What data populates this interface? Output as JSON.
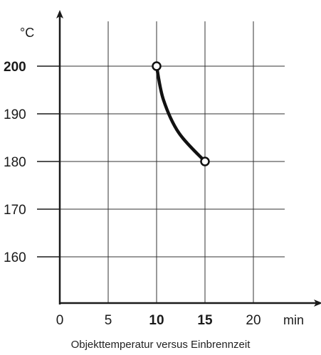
{
  "chart_data": {
    "type": "line",
    "caption": "Objekttemperatur versus Einbrennzeit",
    "xunit": "min",
    "yunit": "°C",
    "xlim": [
      0,
      22
    ],
    "ylim": [
      151,
      205
    ],
    "x_ticks": [
      {
        "value": 0,
        "label": "0",
        "bold": false
      },
      {
        "value": 5,
        "label": "5",
        "bold": false
      },
      {
        "value": 10,
        "label": "10",
        "bold": true
      },
      {
        "value": 15,
        "label": "15",
        "bold": true
      },
      {
        "value": 20,
        "label": "20",
        "bold": false
      }
    ],
    "y_ticks": [
      {
        "value": 160,
        "label": "160",
        "bold": false
      },
      {
        "value": 170,
        "label": "170",
        "bold": false
      },
      {
        "value": 180,
        "label": "180",
        "bold": false
      },
      {
        "value": 190,
        "label": "190",
        "bold": false
      },
      {
        "value": 200,
        "label": "200",
        "bold": true
      }
    ],
    "grid": true,
    "series": [
      {
        "points": [
          {
            "x": 10,
            "y": 200
          },
          {
            "x": 10.7,
            "y": 193
          },
          {
            "x": 12.3,
            "y": 186
          },
          {
            "x": 15,
            "y": 180
          }
        ],
        "endpoints": [
          {
            "x": 10,
            "y": 200
          },
          {
            "x": 15,
            "y": 180
          }
        ]
      }
    ]
  }
}
